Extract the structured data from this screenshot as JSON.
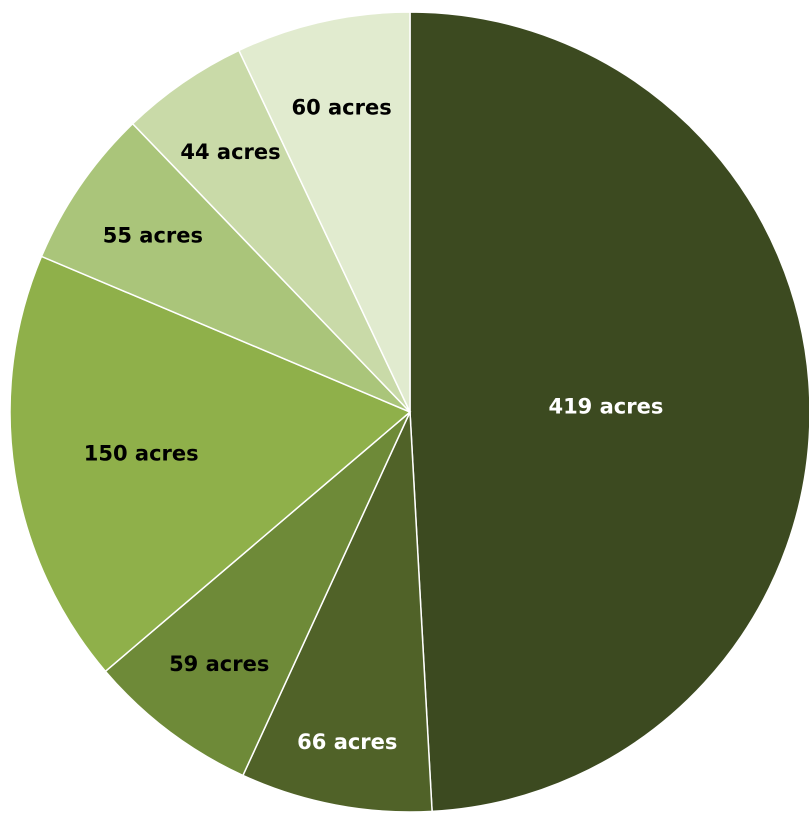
{
  "chart_data": {
    "type": "pie",
    "start_angle_deg": 0,
    "direction": "clockwise",
    "slices": [
      {
        "value": 419,
        "label": "419 acres",
        "color": "#3C4A20",
        "label_color": "#FFFFFF"
      },
      {
        "value": 66,
        "label": "66 acres",
        "color": "#506228",
        "label_color": "#FFFFFF"
      },
      {
        "value": 59,
        "label": "59 acres",
        "color": "#6E8A38",
        "label_color": "#000000"
      },
      {
        "value": 150,
        "label": "150 acres",
        "color": "#8FB04A",
        "label_color": "#000000"
      },
      {
        "value": 55,
        "label": "55 acres",
        "color": "#AAC57A",
        "label_color": "#000000"
      },
      {
        "value": 44,
        "label": "44 acres",
        "color": "#C9DAA8",
        "label_color": "#000000"
      },
      {
        "value": 60,
        "label": "60 acres",
        "color": "#E1EBCF",
        "label_color": "#000000"
      }
    ]
  }
}
